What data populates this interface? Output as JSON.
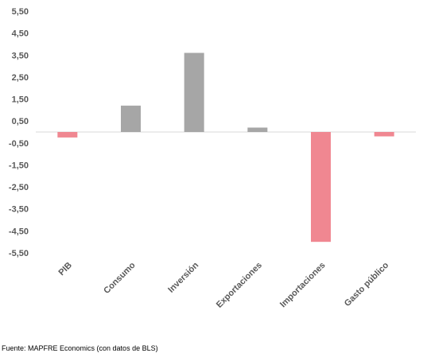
{
  "chart_data": {
    "type": "bar",
    "categories": [
      "PIB",
      "Consumo",
      "Inversión",
      "Exportaciones",
      "Importaciones",
      "Gasto público"
    ],
    "values": [
      -0.25,
      1.2,
      3.6,
      0.2,
      -5.0,
      -0.2
    ],
    "yticks": [
      "5,50",
      "4,50",
      "3,50",
      "2,50",
      "1,50",
      "0,50",
      "-0,50",
      "-1,50",
      "-2,50",
      "-3,50",
      "-4,50",
      "-5,50"
    ],
    "ylim": [
      -5.5,
      5.5
    ],
    "grid": false,
    "colors": {
      "positive": "#a6a6a6",
      "negative": "#f08791",
      "axis": "#d9d9d9"
    }
  },
  "source": "Fuente: MAPFRE Economics (con datos de BLS)"
}
